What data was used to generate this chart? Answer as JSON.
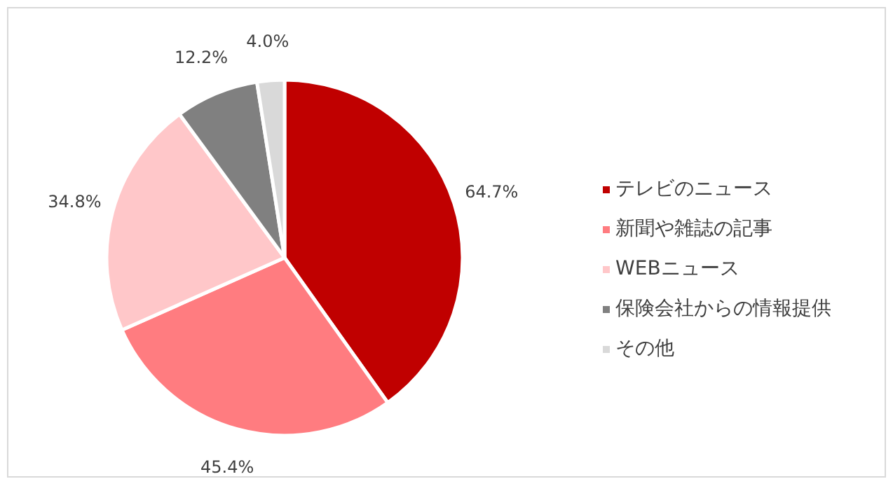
{
  "chart_data": {
    "type": "pie",
    "categories": [
      "テレビのニュース",
      "新聞や雑誌の記事",
      "WEBニュース",
      "保険会社からの情報提供",
      "その他"
    ],
    "values": [
      64.7,
      45.4,
      34.8,
      12.2,
      4.0
    ],
    "value_labels": [
      "64.7%",
      "45.4%",
      "34.8%",
      "12.2%",
      "4.0%"
    ],
    "colors": [
      "#c00000",
      "#ff7c80",
      "#ffc7c9",
      "#808080",
      "#d9d9d9"
    ],
    "legend": "right"
  }
}
